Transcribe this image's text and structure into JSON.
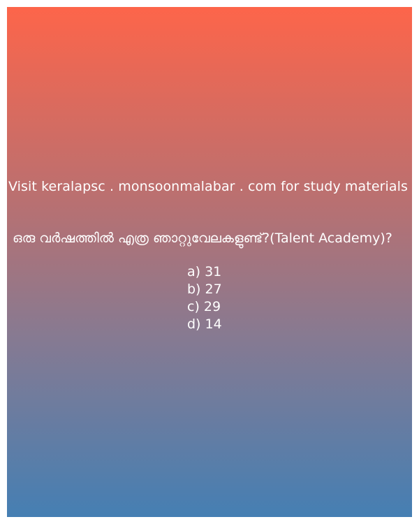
{
  "promo_text": "Visit keralapsc . monsoonmalabar . com for study materials",
  "question": "ഒരു വർഷത്തിൽ എത്ര ഞാറ്റുവേലകളുണ്ട്?(Talent Academy)?",
  "options": [
    {
      "label": "a) 31"
    },
    {
      "label": "b) 27"
    },
    {
      "label": "c) 29"
    },
    {
      "label": "d) 14"
    }
  ],
  "colors": {
    "gradient_top": "#fd654a",
    "gradient_bottom": "#457fb3",
    "text": "#ffffff"
  }
}
